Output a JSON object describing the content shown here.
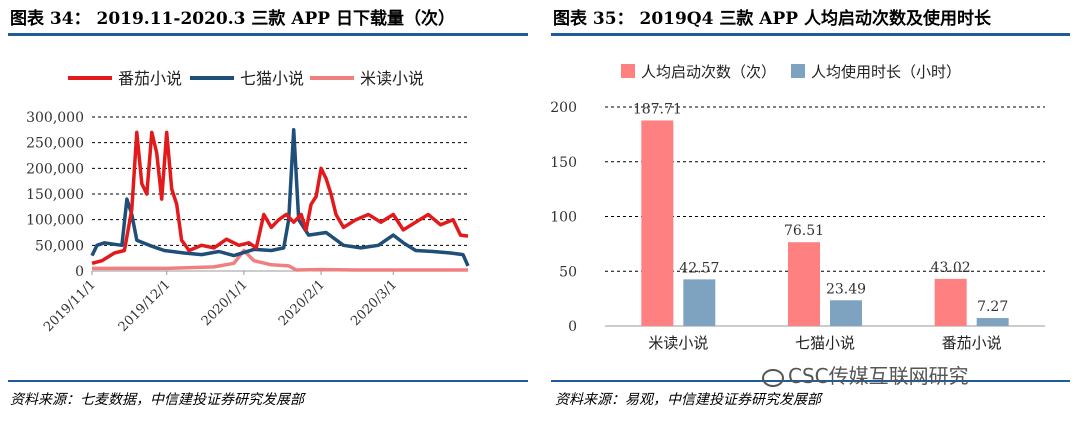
{
  "left_title": "图表 34：  2019.11-2020.3 三款 APP 日下载量（次）",
  "right_title": "图表 35：  2019Q4 三款 APP 人均启动次数及使用时长",
  "left_source": "资料来源：七麦数据，中信建投证券研究发展部",
  "right_source": "资料来源：易观，中信建投证券研究发展部",
  "watermark": "CSC传媒互联网研究",
  "colors": {
    "rule": "#1f5c99",
    "red": "#e31a1c",
    "navy": "#1f4e79",
    "pink": "#f08080",
    "bar_pink": "#ff8080",
    "bar_blue": "#7ea3c0"
  },
  "chart_data": [
    {
      "type": "line",
      "title": "2019.11-2020.3 三款 APP 日下载量（次）",
      "ylim": [
        0,
        300000
      ],
      "yticks": [
        0,
        50000,
        100000,
        150000,
        200000,
        250000,
        300000
      ],
      "ytick_labels": [
        "0",
        "50,000",
        "100,000",
        "150,000",
        "200,000",
        "250,000",
        "300,000"
      ],
      "xticks": [
        "2019/11/1",
        "2019/12/1",
        "2020/1/1",
        "2020/2/1",
        "2020/3/1"
      ],
      "xtick_dates": [
        "2019-11-01",
        "2019-12-01",
        "2020-01-01",
        "2020-02-01",
        "2020-03-01"
      ],
      "xrange": [
        "2019-11-01",
        "2020-03-31"
      ],
      "legend_position": "top",
      "series": [
        {
          "name": "番茄小说",
          "color": "#e31a1c",
          "points": [
            [
              "2019-11-01",
              15000
            ],
            [
              "2019-11-05",
              20000
            ],
            [
              "2019-11-10",
              35000
            ],
            [
              "2019-11-14",
              40000
            ],
            [
              "2019-11-17",
              120000
            ],
            [
              "2019-11-19",
              270000
            ],
            [
              "2019-11-21",
              170000
            ],
            [
              "2019-11-23",
              150000
            ],
            [
              "2019-11-25",
              270000
            ],
            [
              "2019-11-27",
              230000
            ],
            [
              "2019-11-29",
              140000
            ],
            [
              "2019-12-01",
              270000
            ],
            [
              "2019-12-03",
              160000
            ],
            [
              "2019-12-05",
              130000
            ],
            [
              "2019-12-07",
              60000
            ],
            [
              "2019-12-10",
              40000
            ],
            [
              "2019-12-15",
              50000
            ],
            [
              "2019-12-20",
              45000
            ],
            [
              "2019-12-25",
              62000
            ],
            [
              "2019-12-30",
              50000
            ],
            [
              "2020-01-03",
              55000
            ],
            [
              "2020-01-06",
              45000
            ],
            [
              "2020-01-09",
              110000
            ],
            [
              "2020-01-12",
              85000
            ],
            [
              "2020-01-15",
              100000
            ],
            [
              "2020-01-18",
              110000
            ],
            [
              "2020-01-21",
              95000
            ],
            [
              "2020-01-24",
              110000
            ],
            [
              "2020-01-26",
              80000
            ],
            [
              "2020-01-28",
              130000
            ],
            [
              "2020-01-30",
              145000
            ],
            [
              "2020-02-01",
              200000
            ],
            [
              "2020-02-03",
              180000
            ],
            [
              "2020-02-05",
              150000
            ],
            [
              "2020-02-07",
              110000
            ],
            [
              "2020-02-10",
              85000
            ],
            [
              "2020-02-15",
              100000
            ],
            [
              "2020-02-20",
              110000
            ],
            [
              "2020-02-25",
              95000
            ],
            [
              "2020-03-01",
              110000
            ],
            [
              "2020-03-05",
              80000
            ],
            [
              "2020-03-10",
              95000
            ],
            [
              "2020-03-15",
              110000
            ],
            [
              "2020-03-20",
              90000
            ],
            [
              "2020-03-25",
              100000
            ],
            [
              "2020-03-28",
              70000
            ],
            [
              "2020-03-31",
              68000
            ]
          ]
        },
        {
          "name": "七猫小说",
          "color": "#1f4e79",
          "points": [
            [
              "2019-11-01",
              30000
            ],
            [
              "2019-11-03",
              50000
            ],
            [
              "2019-11-06",
              55000
            ],
            [
              "2019-11-10",
              52000
            ],
            [
              "2019-11-13",
              50000
            ],
            [
              "2019-11-15",
              140000
            ],
            [
              "2019-11-17",
              110000
            ],
            [
              "2019-11-19",
              60000
            ],
            [
              "2019-11-24",
              50000
            ],
            [
              "2019-11-30",
              40000
            ],
            [
              "2019-12-08",
              35000
            ],
            [
              "2019-12-15",
              32000
            ],
            [
              "2019-12-22",
              38000
            ],
            [
              "2019-12-28",
              30000
            ],
            [
              "2020-01-05",
              42000
            ],
            [
              "2020-01-12",
              40000
            ],
            [
              "2020-01-17",
              45000
            ],
            [
              "2020-01-19",
              100000
            ],
            [
              "2020-01-21",
              275000
            ],
            [
              "2020-01-23",
              100000
            ],
            [
              "2020-01-27",
              70000
            ],
            [
              "2020-02-03",
              75000
            ],
            [
              "2020-02-10",
              50000
            ],
            [
              "2020-02-17",
              45000
            ],
            [
              "2020-02-24",
              50000
            ],
            [
              "2020-03-01",
              70000
            ],
            [
              "2020-03-05",
              55000
            ],
            [
              "2020-03-10",
              40000
            ],
            [
              "2020-03-17",
              38000
            ],
            [
              "2020-03-24",
              35000
            ],
            [
              "2020-03-29",
              32000
            ],
            [
              "2020-03-31",
              10000
            ]
          ]
        },
        {
          "name": "米读小说",
          "color": "#f08080",
          "points": [
            [
              "2019-11-01",
              5000
            ],
            [
              "2019-11-15",
              5000
            ],
            [
              "2019-12-01",
              5000
            ],
            [
              "2019-12-20",
              8000
            ],
            [
              "2019-12-28",
              15000
            ],
            [
              "2020-01-01",
              40000
            ],
            [
              "2020-01-05",
              20000
            ],
            [
              "2020-01-12",
              12000
            ],
            [
              "2020-01-19",
              10000
            ],
            [
              "2020-01-22",
              2000
            ],
            [
              "2020-02-01",
              3000
            ],
            [
              "2020-02-15",
              2000
            ],
            [
              "2020-03-01",
              2000
            ],
            [
              "2020-03-31",
              2000
            ]
          ]
        }
      ]
    },
    {
      "type": "bar",
      "title": "2019Q4 三款 APP 人均启动次数及使用时长",
      "categories": [
        "米读小说",
        "七猫小说",
        "番茄小说"
      ],
      "ylim": [
        0,
        200
      ],
      "yticks": [
        0,
        50,
        100,
        150,
        200
      ],
      "ytick_labels": [
        "0",
        "50",
        "100",
        "150",
        "200"
      ],
      "legend_position": "top",
      "series": [
        {
          "name": "人均启动次数（次）",
          "color": "#ff8080",
          "values": [
            187.71,
            76.51,
            43.02
          ],
          "value_labels": [
            "187.71",
            "76.51",
            "43.02"
          ]
        },
        {
          "name": "人均使用时长（小时）",
          "color": "#7ea3c0",
          "values": [
            42.57,
            23.49,
            7.27
          ],
          "value_labels": [
            "42.57",
            "23.49",
            "7.27"
          ]
        }
      ]
    }
  ]
}
